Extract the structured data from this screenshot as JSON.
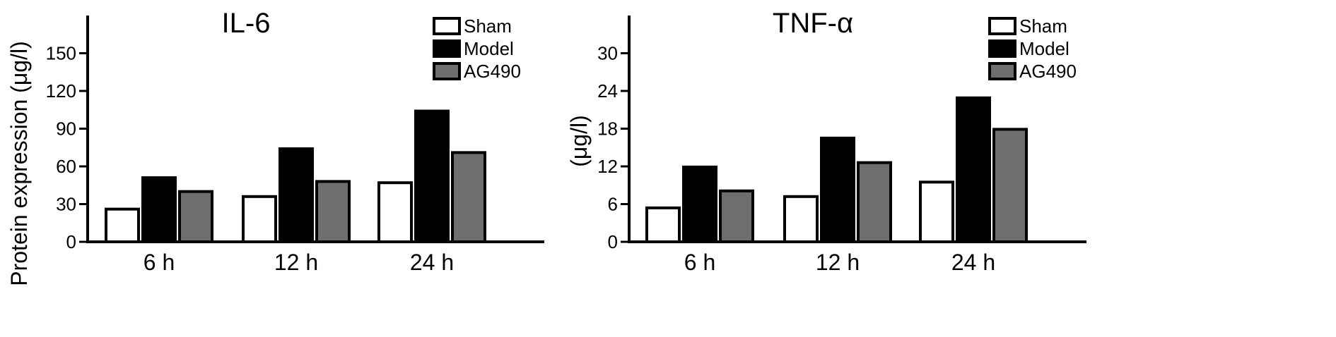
{
  "chart_data": [
    {
      "type": "bar",
      "title": "IL-6",
      "ylabel": "Protein expression (μg/l)",
      "xlabel": "",
      "categories": [
        "6 h",
        "12 h",
        "24 h"
      ],
      "ylim": [
        0,
        180
      ],
      "yticks": [
        0,
        30,
        60,
        90,
        120,
        150
      ],
      "series": [
        {
          "name": "Sham",
          "color": "#ffffff",
          "values": [
            26,
            36,
            47
          ]
        },
        {
          "name": "Model",
          "color": "#000000",
          "values": [
            51,
            74,
            104
          ]
        },
        {
          "name": "AG490",
          "color": "#6e6e6e",
          "values": [
            40,
            48,
            71
          ]
        }
      ],
      "legend": "top-right",
      "grid": false
    },
    {
      "type": "bar",
      "title": "TNF-α",
      "ylabel": "(μg/l)",
      "xlabel": "",
      "categories": [
        "6 h",
        "12 h",
        "24 h"
      ],
      "ylim": [
        0,
        36
      ],
      "yticks": [
        0,
        6,
        12,
        18,
        24,
        30
      ],
      "series": [
        {
          "name": "Sham",
          "color": "#ffffff",
          "values": [
            5.4,
            7.2,
            9.5
          ]
        },
        {
          "name": "Model",
          "color": "#000000",
          "values": [
            11.9,
            16.5,
            22.9
          ]
        },
        {
          "name": "AG490",
          "color": "#6e6e6e",
          "values": [
            8.1,
            12.6,
            17.9
          ]
        }
      ],
      "legend": "top-right",
      "grid": false
    }
  ]
}
